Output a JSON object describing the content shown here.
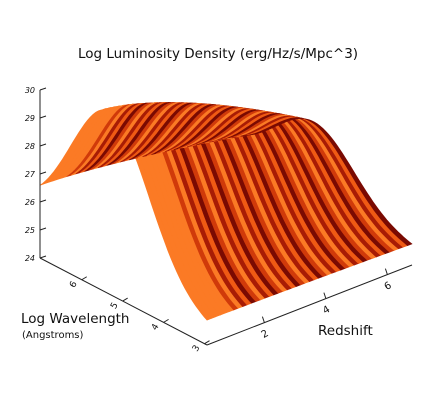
{
  "chart_data": {
    "type": "surface",
    "title": "Log Luminosity Density (erg/Hz/s/Mpc^3)",
    "xlabel": "Log Wavelength",
    "xlabel_sub": "(Angstroms)",
    "ylabel": "Redshift",
    "zlabel": "",
    "x_ticks": [
      "3",
      "4",
      "5",
      "6"
    ],
    "y_ticks": [
      "2",
      "4",
      "6"
    ],
    "z_ticks": [
      "24",
      "25",
      "26",
      "27",
      "28",
      "29",
      "30"
    ],
    "xlim": [
      3,
      6.5
    ],
    "ylim": [
      0,
      7
    ],
    "zlim": [
      24,
      30
    ],
    "colormap": [
      "#7a0a02",
      "#a81c05",
      "#d03a0a",
      "#ef5a14",
      "#fb7a25"
    ],
    "surface_profile": {
      "log_wavelength": [
        6.5,
        6.0,
        5.5,
        5.0,
        4.5,
        4.0,
        3.5,
        3.0
      ],
      "log_luminosity_density": [
        27.2,
        28.5,
        29.5,
        29.9,
        29.9,
        29.4,
        27.6,
        26.5
      ]
    }
  }
}
